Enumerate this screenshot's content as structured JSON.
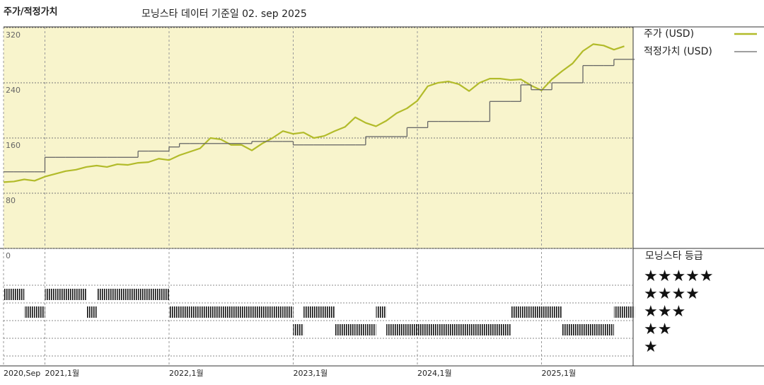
{
  "chart_data": {
    "type": "line",
    "title": "주가/적정가치",
    "subtitle": "모닝스타 데이터 기준일 02. sep 2025",
    "x": [
      "2020-09",
      "2020-10",
      "2020-11",
      "2020-12",
      "2021-01",
      "2021-02",
      "2021-03",
      "2021-04",
      "2021-05",
      "2021-06",
      "2021-07",
      "2021-08",
      "2021-09",
      "2021-10",
      "2021-11",
      "2021-12",
      "2022-01",
      "2022-02",
      "2022-03",
      "2022-04",
      "2022-05",
      "2022-06",
      "2022-07",
      "2022-08",
      "2022-09",
      "2022-10",
      "2022-11",
      "2022-12",
      "2023-01",
      "2023-02",
      "2023-03",
      "2023-04",
      "2023-05",
      "2023-06",
      "2023-07",
      "2023-08",
      "2023-09",
      "2023-10",
      "2023-11",
      "2023-12",
      "2024-01",
      "2024-02",
      "2024-03",
      "2024-04",
      "2024-05",
      "2024-06",
      "2024-07",
      "2024-08",
      "2024-09",
      "2024-10",
      "2024-11",
      "2024-12",
      "2025-01",
      "2025-02",
      "2025-03",
      "2025-04",
      "2025-05",
      "2025-06",
      "2025-07",
      "2025-08",
      "2025-09"
    ],
    "series": [
      {
        "name": "주가 (USD)",
        "color": "#b2bb2a",
        "values": [
          96,
          97,
          100,
          98,
          104,
          108,
          112,
          114,
          118,
          120,
          118,
          122,
          121,
          124,
          125,
          130,
          128,
          135,
          140,
          145,
          160,
          158,
          150,
          150,
          142,
          152,
          160,
          170,
          166,
          168,
          160,
          163,
          170,
          176,
          190,
          182,
          177,
          185,
          196,
          203,
          214,
          235,
          240,
          242,
          238,
          228,
          240,
          246,
          246,
          244,
          245,
          236,
          229,
          245,
          257,
          268,
          286,
          296,
          294,
          288,
          293
        ]
      },
      {
        "name": "적정가치 (USD)",
        "color": "#666666",
        "step": true,
        "values": [
          111,
          111,
          111,
          111,
          132,
          132,
          132,
          132,
          132,
          132,
          132,
          132,
          132,
          141,
          141,
          141,
          147,
          152,
          152,
          152,
          152,
          152,
          152,
          152,
          155,
          155,
          155,
          155,
          150,
          150,
          150,
          150,
          150,
          150,
          150,
          162,
          162,
          162,
          162,
          175,
          175,
          184,
          184,
          184,
          184,
          184,
          184,
          213,
          213,
          213,
          237,
          230,
          230,
          240,
          240,
          240,
          265,
          265,
          265,
          274,
          274
        ]
      }
    ],
    "ylim": [
      0,
      321
    ],
    "yticks": [
      0,
      80,
      160,
      240,
      320
    ],
    "xticks": [
      {
        "value": "2020-09",
        "label": "2020,Sep"
      },
      {
        "value": "2021-01",
        "label": "2021,1월"
      },
      {
        "value": "2022-01",
        "label": "2022,1월"
      },
      {
        "value": "2023-01",
        "label": "2023,1월"
      },
      {
        "value": "2024-01",
        "label": "2024,1월"
      },
      {
        "value": "2025-01",
        "label": "2025,1월"
      }
    ],
    "grid": true,
    "background": "#f8f4cc",
    "rating": {
      "title": "모닝스타 등급",
      "color": "#111111",
      "ticks": [
        {
          "value": 5,
          "label": "★★★★★"
        },
        {
          "value": 4,
          "label": "★★★★"
        },
        {
          "value": 3,
          "label": "★★★"
        },
        {
          "value": 2,
          "label": "★★"
        },
        {
          "value": 1,
          "label": "★"
        }
      ],
      "values": [
        4,
        4,
        3,
        3,
        4,
        4,
        4,
        4,
        3,
        4,
        4,
        4,
        4,
        4,
        4,
        4,
        3,
        3,
        3,
        3,
        3,
        3,
        3,
        3,
        3,
        3,
        3,
        3,
        2,
        3,
        3,
        3,
        2,
        2,
        2,
        2,
        3,
        2,
        2,
        2,
        2,
        2,
        2,
        2,
        2,
        2,
        2,
        2,
        2,
        3,
        3,
        3,
        3,
        3,
        2,
        2,
        2,
        2,
        2,
        3,
        3
      ]
    }
  }
}
